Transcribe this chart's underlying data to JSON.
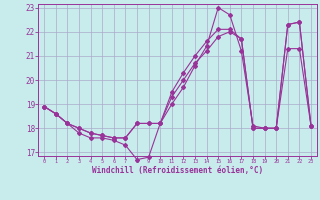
{
  "xlabel": "Windchill (Refroidissement éolien,°C)",
  "bg_color": "#c8ecec",
  "line_color": "#993399",
  "grid_color": "#aaaacc",
  "xlim": [
    -0.5,
    23.5
  ],
  "ylim": [
    16.85,
    23.15
  ],
  "yticks": [
    17,
    18,
    19,
    20,
    21,
    22,
    23
  ],
  "xticks": [
    0,
    1,
    2,
    3,
    4,
    5,
    6,
    7,
    8,
    9,
    10,
    11,
    12,
    13,
    14,
    15,
    16,
    17,
    18,
    19,
    20,
    21,
    22,
    23
  ],
  "series1_x": [
    0,
    1,
    2,
    3,
    4,
    5,
    6,
    7,
    8,
    9,
    10,
    11,
    12,
    13,
    14,
    15,
    16,
    17,
    18,
    19,
    20,
    21,
    22,
    23
  ],
  "series1_y": [
    18.9,
    18.6,
    18.2,
    17.8,
    17.6,
    17.6,
    17.5,
    17.3,
    16.7,
    16.8,
    18.2,
    19.0,
    19.7,
    20.6,
    21.4,
    23.0,
    22.7,
    21.2,
    18.1,
    18.0,
    18.0,
    21.3,
    21.3,
    18.1
  ],
  "series2_x": [
    0,
    1,
    2,
    3,
    4,
    5,
    6,
    7,
    8,
    9,
    10,
    11,
    12,
    13,
    14,
    15,
    16,
    17,
    18,
    19,
    20,
    21,
    22,
    23
  ],
  "series2_y": [
    18.9,
    18.6,
    18.2,
    18.0,
    17.8,
    17.7,
    17.6,
    17.6,
    18.2,
    18.2,
    18.2,
    19.3,
    20.0,
    20.7,
    21.2,
    21.8,
    22.0,
    21.7,
    18.0,
    18.0,
    18.0,
    22.3,
    22.4,
    18.1
  ],
  "series3_x": [
    0,
    1,
    2,
    3,
    4,
    5,
    6,
    7,
    8,
    9,
    10,
    11,
    12,
    13,
    14,
    15,
    16,
    17,
    18,
    19,
    20,
    21,
    22,
    23
  ],
  "series3_y": [
    18.9,
    18.6,
    18.2,
    18.0,
    17.8,
    17.7,
    17.6,
    17.6,
    18.2,
    18.2,
    18.2,
    19.5,
    20.3,
    21.0,
    21.6,
    22.1,
    22.1,
    21.7,
    18.0,
    18.0,
    18.0,
    22.3,
    22.4,
    18.1
  ]
}
